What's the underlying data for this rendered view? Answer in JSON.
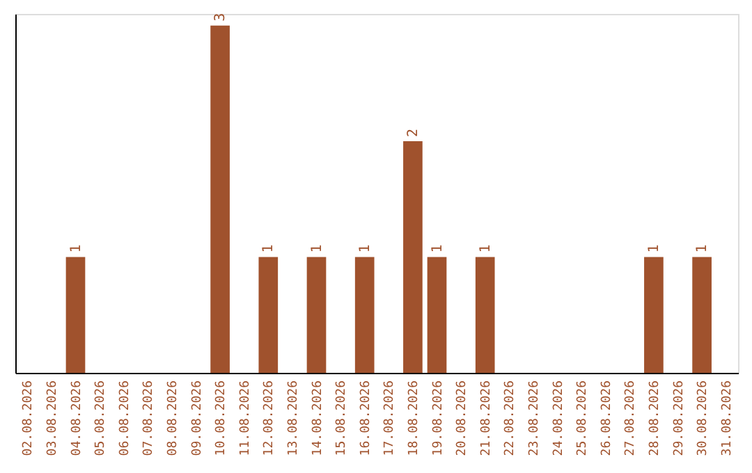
{
  "chart_data": {
    "type": "bar",
    "categories": [
      "02.08.2026",
      "03.08.2026",
      "04.08.2026",
      "05.08.2026",
      "06.08.2026",
      "07.08.2026",
      "08.08.2026",
      "09.08.2026",
      "10.08.2026",
      "11.08.2026",
      "12.08.2026",
      "13.08.2026",
      "14.08.2026",
      "15.08.2026",
      "16.08.2026",
      "17.08.2026",
      "18.08.2026",
      "19.08.2026",
      "20.08.2026",
      "21.08.2026",
      "22.08.2026",
      "23.08.2026",
      "24.08.2026",
      "25.08.2026",
      "26.08.2026",
      "27.08.2026",
      "28.08.2026",
      "29.08.2026",
      "30.08.2026",
      "31.08.2026"
    ],
    "values": [
      0,
      0,
      1,
      0,
      0,
      0,
      0,
      0,
      3,
      0,
      1,
      0,
      1,
      0,
      1,
      0,
      2,
      1,
      0,
      1,
      0,
      0,
      0,
      0,
      0,
      0,
      1,
      0,
      1,
      0
    ],
    "value_labels": [
      null,
      null,
      "1",
      null,
      null,
      null,
      null,
      null,
      "3",
      null,
      "1",
      null,
      "1",
      null,
      "1",
      null,
      "2",
      "1",
      null,
      "1",
      null,
      null,
      null,
      null,
      null,
      null,
      "1",
      null,
      "1",
      null
    ],
    "color": "#a0522d",
    "ylim": [
      0,
      3.1
    ],
    "tick_labels": "x",
    "grid": false
  }
}
